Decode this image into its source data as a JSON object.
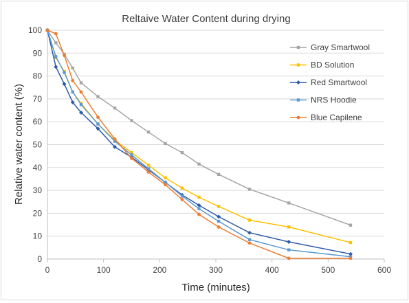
{
  "chart_data": {
    "type": "line",
    "title": "Reltaive Water Content during drying",
    "xlabel": "Time (minutes)",
    "ylabel": "Relative water content (%)",
    "xlim": [
      0,
      600
    ],
    "ylim": [
      0,
      100
    ],
    "xticks": [
      0,
      100,
      200,
      300,
      400,
      500,
      600
    ],
    "yticks": [
      0,
      10,
      20,
      30,
      40,
      50,
      60,
      70,
      80,
      90,
      100
    ],
    "grid": "horizontal",
    "legend": "right",
    "series": [
      {
        "name": "Gray Smartwool",
        "color": "#a5a5a5",
        "marker": "square",
        "points": [
          [
            0,
            100
          ],
          [
            15,
            94.5
          ],
          [
            30,
            89.5
          ],
          [
            45,
            83.5
          ],
          [
            60,
            77
          ],
          [
            90,
            71
          ],
          [
            120,
            66
          ],
          [
            150,
            60.5
          ],
          [
            180,
            55.5
          ],
          [
            210,
            50.5
          ],
          [
            240,
            46.5
          ],
          [
            270,
            41.5
          ],
          [
            305,
            37
          ],
          [
            360,
            30.5
          ],
          [
            430,
            24.5
          ],
          [
            540,
            14.8
          ]
        ]
      },
      {
        "name": "BD Solution",
        "color": "#ffc000",
        "marker": "square",
        "points": [
          [
            0,
            100
          ],
          [
            15,
            88
          ],
          [
            30,
            82
          ],
          [
            45,
            73
          ],
          [
            60,
            68
          ],
          [
            90,
            59
          ],
          [
            120,
            52
          ],
          [
            150,
            46.5
          ],
          [
            180,
            41
          ],
          [
            210,
            35.5
          ],
          [
            240,
            31
          ],
          [
            270,
            27
          ],
          [
            305,
            23
          ],
          [
            360,
            17
          ],
          [
            430,
            14
          ],
          [
            540,
            7.2
          ]
        ]
      },
      {
        "name": "Red Smartwool",
        "color": "#2e5aa8",
        "marker": "diamond",
        "points": [
          [
            0,
            100
          ],
          [
            15,
            84
          ],
          [
            30,
            76.5
          ],
          [
            45,
            68.5
          ],
          [
            60,
            64
          ],
          [
            90,
            57
          ],
          [
            120,
            49
          ],
          [
            150,
            44.5
          ],
          [
            180,
            39
          ],
          [
            210,
            33.5
          ],
          [
            240,
            28
          ],
          [
            270,
            23.5
          ],
          [
            305,
            18.5
          ],
          [
            360,
            11.5
          ],
          [
            430,
            7.5
          ],
          [
            540,
            2.2
          ]
        ]
      },
      {
        "name": "NRS Hoodie",
        "color": "#5b9bd5",
        "marker": "square",
        "points": [
          [
            0,
            100
          ],
          [
            15,
            88.5
          ],
          [
            30,
            81.5
          ],
          [
            45,
            73
          ],
          [
            60,
            67.5
          ],
          [
            90,
            59
          ],
          [
            120,
            51.5
          ],
          [
            150,
            45.5
          ],
          [
            180,
            39.5
          ],
          [
            210,
            33.5
          ],
          [
            240,
            27.5
          ],
          [
            270,
            22
          ],
          [
            305,
            16.5
          ],
          [
            360,
            8.5
          ],
          [
            430,
            4
          ],
          [
            540,
            1
          ]
        ]
      },
      {
        "name": "Blue Capilene",
        "color": "#ed7d31",
        "marker": "circle",
        "points": [
          [
            0,
            100
          ],
          [
            15,
            98.5
          ],
          [
            30,
            89
          ],
          [
            45,
            78
          ],
          [
            60,
            73
          ],
          [
            90,
            62
          ],
          [
            120,
            52.5
          ],
          [
            150,
            44
          ],
          [
            180,
            38
          ],
          [
            210,
            32.5
          ],
          [
            240,
            26
          ],
          [
            270,
            19.5
          ],
          [
            305,
            14
          ],
          [
            360,
            7
          ],
          [
            430,
            0.3
          ],
          [
            540,
            0.3
          ]
        ]
      }
    ]
  }
}
